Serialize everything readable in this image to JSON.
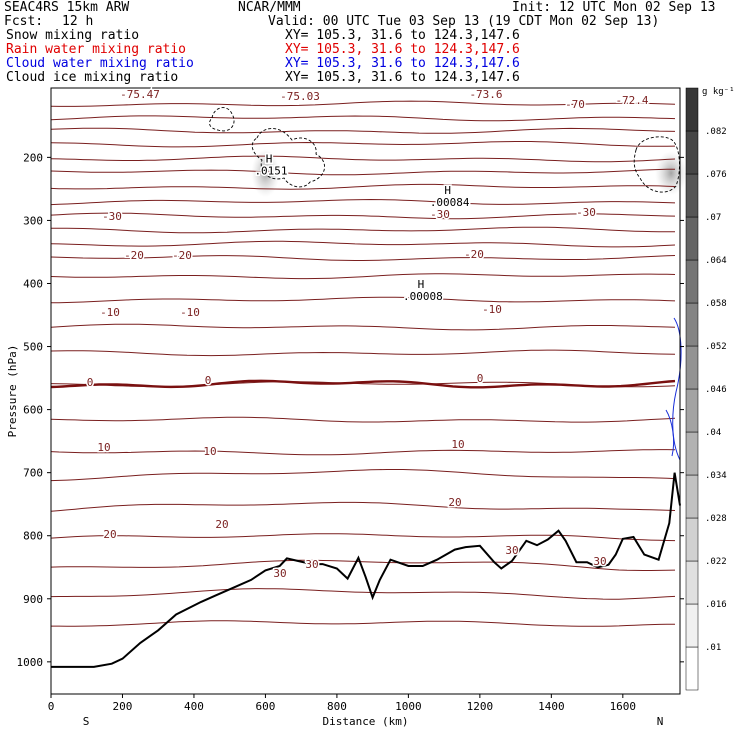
{
  "header": {
    "model": "SEAC4RS 15km ARW",
    "org": "NCAR/MMM",
    "init": "Init: 12 UTC Mon 02 Sep 13",
    "fcst_label": "Fcst:",
    "fcst_value": "12 h",
    "valid": "Valid: 00 UTC Tue 03 Sep 13 (19 CDT Mon 02 Sep 13)",
    "fields": [
      {
        "name": "Snow mixing ratio",
        "xy": "XY= 105.3, 31.6 to 124.3,147.6",
        "color": "#000000"
      },
      {
        "name": "Rain water mixing ratio",
        "xy": "XY= 105.3, 31.6 to 124.3,147.6",
        "color": "#e00000"
      },
      {
        "name": "Cloud water mixing ratio",
        "xy": "XY= 105.3, 31.6 to 124.3,147.6",
        "color": "#0000e0"
      },
      {
        "name": "Cloud ice mixing ratio",
        "xy": "XY= 105.3, 31.6 to 124.3,147.6",
        "color": "#000000"
      }
    ]
  },
  "chart_data": {
    "type": "cross-section",
    "xlabel": "Distance (km)",
    "ylabel": "Pressure (hPa)",
    "xlim": [
      0,
      1760
    ],
    "ylim": [
      1050,
      100
    ],
    "x_ticks": [
      0,
      200,
      400,
      600,
      800,
      1000,
      1200,
      1400,
      1600
    ],
    "y_ticks": [
      200,
      300,
      400,
      500,
      600,
      700,
      800,
      900,
      1000
    ],
    "x_end_labels": {
      "left": "S",
      "right": "N"
    },
    "colorbar": {
      "unit": "g kg⁻¹",
      "levels": [
        ".01",
        ".016",
        ".022",
        ".028",
        ".034",
        ".04",
        ".046",
        ".052",
        ".058",
        ".064",
        ".07",
        ".076",
        ".082"
      ]
    },
    "temperature_labels": [
      "-75.47",
      "-75.03",
      "-73.6",
      "-72.4",
      "-70",
      "-30",
      "-20",
      "-10",
      "0",
      "10",
      "20",
      "30"
    ],
    "extrema": [
      {
        "kind": "H",
        "value": ".0151",
        "x": 610,
        "p": 208
      },
      {
        "kind": "H",
        "value": ".00084",
        "x": 1110,
        "p": 258
      },
      {
        "kind": "H",
        "value": ".00008",
        "x": 1035,
        "p": 407
      }
    ],
    "terrain": [
      [
        0,
        1008
      ],
      [
        120,
        1008
      ],
      [
        170,
        1003
      ],
      [
        200,
        995
      ],
      [
        250,
        970
      ],
      [
        300,
        950
      ],
      [
        350,
        925
      ],
      [
        420,
        905
      ],
      [
        460,
        895
      ],
      [
        520,
        880
      ],
      [
        560,
        870
      ],
      [
        600,
        855
      ],
      [
        640,
        848
      ],
      [
        660,
        836
      ],
      [
        690,
        840
      ],
      [
        730,
        845
      ],
      [
        760,
        845
      ],
      [
        800,
        852
      ],
      [
        830,
        868
      ],
      [
        860,
        835
      ],
      [
        880,
        865
      ],
      [
        900,
        898
      ],
      [
        920,
        870
      ],
      [
        950,
        838
      ],
      [
        1000,
        848
      ],
      [
        1040,
        848
      ],
      [
        1080,
        838
      ],
      [
        1130,
        822
      ],
      [
        1160,
        818
      ],
      [
        1200,
        816
      ],
      [
        1240,
        842
      ],
      [
        1260,
        852
      ],
      [
        1290,
        840
      ],
      [
        1330,
        808
      ],
      [
        1360,
        815
      ],
      [
        1390,
        806
      ],
      [
        1420,
        792
      ],
      [
        1440,
        808
      ],
      [
        1470,
        842
      ],
      [
        1500,
        842
      ],
      [
        1530,
        850
      ],
      [
        1560,
        846
      ],
      [
        1580,
        830
      ],
      [
        1600,
        805
      ],
      [
        1630,
        802
      ],
      [
        1660,
        830
      ],
      [
        1700,
        838
      ],
      [
        1730,
        780
      ],
      [
        1745,
        700
      ],
      [
        1760,
        752
      ]
    ]
  }
}
